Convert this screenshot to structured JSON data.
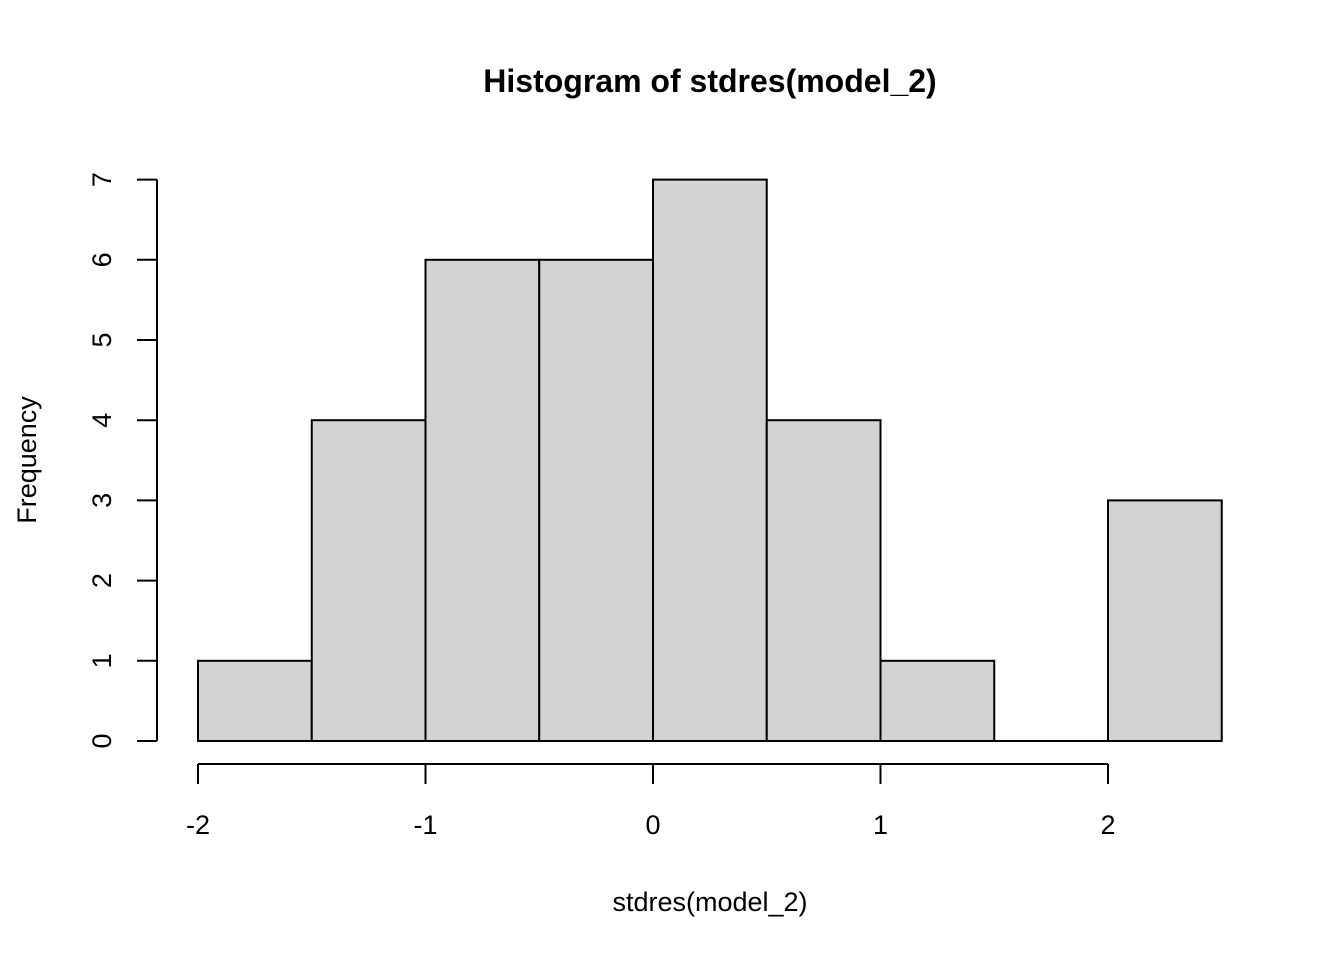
{
  "chart_data": {
    "type": "bar",
    "subtype": "histogram",
    "title": "Histogram of stdres(model_2)",
    "xlabel": "stdres(model_2)",
    "ylabel": "Frequency",
    "bins": [
      {
        "start": -2.0,
        "end": -1.5,
        "count": 1
      },
      {
        "start": -1.5,
        "end": -1.0,
        "count": 4
      },
      {
        "start": -1.0,
        "end": -0.5,
        "count": 6
      },
      {
        "start": -0.5,
        "end": 0.0,
        "count": 6
      },
      {
        "start": 0.0,
        "end": 0.5,
        "count": 7
      },
      {
        "start": 0.5,
        "end": 1.0,
        "count": 4
      },
      {
        "start": 1.0,
        "end": 1.5,
        "count": 1
      },
      {
        "start": 1.5,
        "end": 2.0,
        "count": 0
      },
      {
        "start": 2.0,
        "end": 2.5,
        "count": 3
      }
    ],
    "x_ticks": [
      "-2",
      "-1",
      "0",
      "1",
      "2"
    ],
    "x_tick_values": [
      -2,
      -1,
      0,
      1,
      2
    ],
    "y_ticks": [
      "0",
      "1",
      "2",
      "3",
      "4",
      "5",
      "6",
      "7"
    ],
    "y_tick_values": [
      0,
      1,
      2,
      3,
      4,
      5,
      6,
      7
    ],
    "xlim": [
      -2,
      2.5
    ],
    "ylim": [
      0,
      7
    ],
    "bar_fill": "#d3d3d3",
    "bar_stroke": "#000000",
    "grid": false,
    "legend": "none"
  }
}
